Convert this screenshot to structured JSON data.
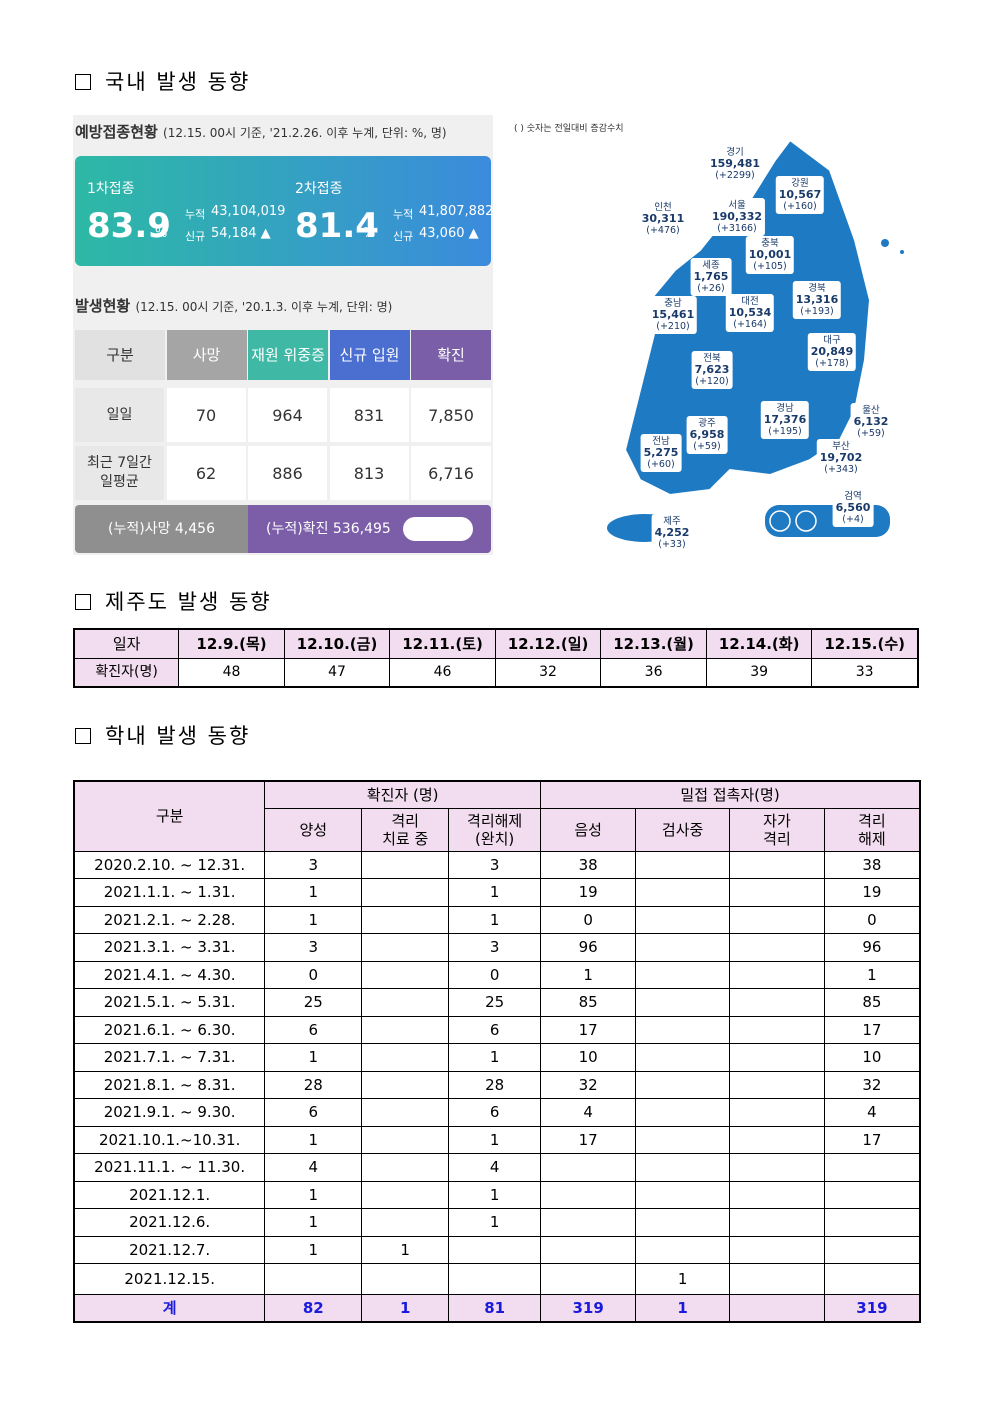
{
  "sections": [
    "국내 발생 동향",
    "제주도 발생 동향",
    "학내 발생 동향"
  ],
  "vaccination": {
    "heading": "예방접종현황",
    "note": "(12.15. 00시 기준, '21.2.26. 이후 누계, 단위: %, 명)",
    "doses": [
      {
        "label": "1차접종",
        "rate": "83.9",
        "unit": "%",
        "total_label": "누적",
        "total": "43,104,019",
        "new_label": "신규",
        "new": "54,184 ▲"
      },
      {
        "label": "2차접종",
        "rate": "81.4",
        "unit": "%",
        "total_label": "누적",
        "total": "41,807,882",
        "new_label": "신규",
        "new": "43,060 ▲"
      }
    ]
  },
  "occurrence": {
    "heading": "발생현황",
    "note": "(12.15. 00시 기준, '20.1.3. 이후 누계, 단위: 명)",
    "columns": [
      "구분",
      "사망",
      "재원 위중증",
      "신규 입원",
      "확진"
    ],
    "rows": [
      [
        "일일",
        "70",
        "964",
        "831",
        "7,850"
      ],
      [
        "최근 7일간\n일평균",
        "62",
        "886",
        "813",
        "6,716"
      ]
    ],
    "cumulative": [
      "(누적)사망  4,456",
      "(누적)확진  536,495"
    ]
  },
  "map": {
    "note": "( ) 숫자는 전일대비 증감수치",
    "regions": [
      [
        "경기",
        "159,481",
        "(+2299)"
      ],
      [
        "강원",
        "10,567",
        "(+160)"
      ],
      [
        "인천",
        "30,311",
        "(+476)"
      ],
      [
        "서울",
        "190,332",
        "(+3166)"
      ],
      [
        "충북",
        "10,001",
        "(+105)"
      ],
      [
        "세종",
        "1,765",
        "(+26)"
      ],
      [
        "경북",
        "13,316",
        "(+193)"
      ],
      [
        "충남",
        "15,461",
        "(+210)"
      ],
      [
        "대전",
        "10,534",
        "(+164)"
      ],
      [
        "대구",
        "20,849",
        "(+178)"
      ],
      [
        "전북",
        "7,623",
        "(+120)"
      ],
      [
        "경남",
        "17,376",
        "(+195)"
      ],
      [
        "울산",
        "6,132",
        "(+59)"
      ],
      [
        "광주",
        "6,958",
        "(+59)"
      ],
      [
        "전남",
        "5,275",
        "(+60)"
      ],
      [
        "부산",
        "19,702",
        "(+343)"
      ],
      [
        "검역",
        "6,560",
        "(+4)"
      ],
      [
        "제주",
        "4,252",
        "(+33)"
      ]
    ]
  },
  "jeju": {
    "rows": [
      [
        "일자",
        "12.9.(목)",
        "12.10.(금)",
        "12.11.(토)",
        "12.12.(일)",
        "12.13.(월)",
        "12.14.(화)",
        "12.15.(수)"
      ],
      [
        "확진자(명)",
        "48",
        "47",
        "46",
        "32",
        "36",
        "39",
        "33"
      ]
    ]
  },
  "school": {
    "label": "구분",
    "groups": [
      "확진자 (명)",
      "밀접  접촉자(명)"
    ],
    "columns": [
      "양성",
      "격리\n치료 중",
      "격리해제\n(완치)",
      "음성",
      "검사중",
      "자가\n격리",
      "격리\n해제"
    ],
    "rows": [
      [
        "2020.2.10.  ~  12.31.",
        "3",
        null,
        "3",
        "38",
        null,
        null,
        "38"
      ],
      [
        "2021.1.1.  ~  1.31.",
        "1",
        null,
        "1",
        "19",
        null,
        null,
        "19"
      ],
      [
        "2021.2.1.  ~  2.28.",
        "1",
        null,
        "1",
        "0",
        null,
        null,
        "0"
      ],
      [
        "2021.3.1.  ~  3.31.",
        "3",
        null,
        "3",
        "96",
        null,
        null,
        "96"
      ],
      [
        "2021.4.1.  ~  4.30.",
        "0",
        null,
        "0",
        "1",
        null,
        null,
        "1"
      ],
      [
        "2021.5.1.  ~  5.31.",
        "25",
        null,
        "25",
        "85",
        null,
        null,
        "85"
      ],
      [
        "2021.6.1.  ~  6.30.",
        "6",
        null,
        "6",
        "17",
        null,
        null,
        "17"
      ],
      [
        "2021.7.1.  ~  7.31.",
        "1",
        null,
        "1",
        "10",
        null,
        null,
        "10"
      ],
      [
        "2021.8.1.  ~  8.31.",
        "28",
        null,
        "28",
        "32",
        null,
        null,
        "32"
      ],
      [
        "2021.9.1.  ~  9.30.",
        "6",
        null,
        "6",
        "4",
        null,
        null,
        "4"
      ],
      [
        "2021.10.1.~10.31.",
        "1",
        null,
        "1",
        "17",
        null,
        null,
        "17"
      ],
      [
        "2021.11.1.  ~  11.30.",
        "4",
        null,
        "4",
        null,
        null,
        null,
        null
      ],
      [
        "2021.12.1.",
        "1",
        null,
        "1",
        null,
        null,
        null,
        null
      ],
      [
        "2021.12.6.",
        "1",
        null,
        "1",
        null,
        null,
        null,
        null
      ],
      [
        "2021.12.7.",
        "1",
        "1",
        null,
        null,
        null,
        null,
        null
      ],
      [
        "2021.12.15.",
        null,
        null,
        null,
        null,
        "1",
        null,
        null
      ]
    ],
    "total": [
      "계",
      "82",
      "1",
      "81",
      "319",
      "1",
      null,
      "319"
    ]
  }
}
